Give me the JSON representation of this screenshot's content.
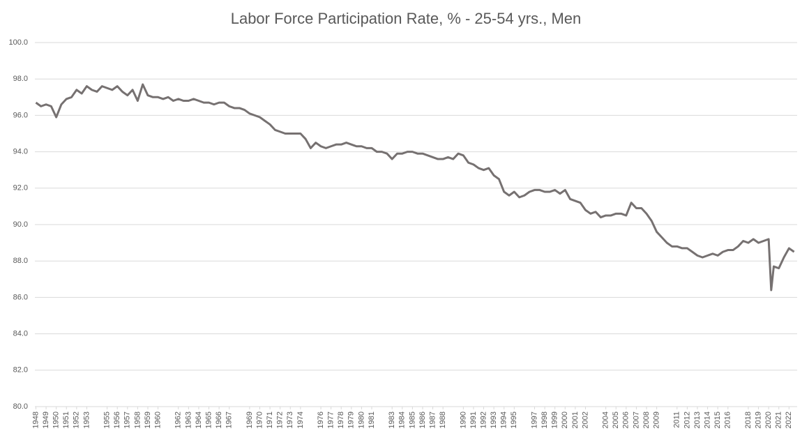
{
  "chart_data": {
    "type": "line",
    "title": "Labor Force Participation Rate, % - 25-54 yrs., Men",
    "x": [
      1948,
      1948.5,
      1949,
      1949.5,
      1950,
      1950.5,
      1951,
      1951.5,
      1952,
      1952.5,
      1953,
      1953.5,
      1954,
      1954.5,
      1955,
      1955.5,
      1956,
      1956.5,
      1957,
      1957.5,
      1958,
      1958.5,
      1959,
      1959.5,
      1960,
      1960.5,
      1961,
      1961.5,
      1962,
      1962.5,
      1963,
      1963.5,
      1964,
      1964.5,
      1965,
      1965.5,
      1966,
      1966.5,
      1967,
      1967.5,
      1968,
      1968.5,
      1969,
      1969.5,
      1970,
      1970.5,
      1971,
      1971.5,
      1972,
      1972.5,
      1973,
      1973.5,
      1974,
      1974.5,
      1975,
      1975.5,
      1976,
      1976.5,
      1977,
      1977.5,
      1978,
      1978.5,
      1979,
      1979.5,
      1980,
      1980.5,
      1981,
      1981.5,
      1982,
      1982.5,
      1983,
      1983.5,
      1984,
      1984.5,
      1985,
      1985.5,
      1986,
      1986.5,
      1987,
      1987.5,
      1988,
      1988.5,
      1989,
      1989.5,
      1990,
      1990.5,
      1991,
      1991.5,
      1992,
      1992.5,
      1993,
      1993.5,
      1994,
      1994.5,
      1995,
      1995.5,
      1996,
      1996.5,
      1997,
      1997.5,
      1998,
      1998.5,
      1999,
      1999.5,
      2000,
      2000.5,
      2001,
      2001.5,
      2002,
      2002.5,
      2003,
      2003.5,
      2004,
      2004.5,
      2005,
      2005.5,
      2006,
      2006.5,
      2007,
      2007.5,
      2008,
      2008.5,
      2009,
      2009.5,
      2010,
      2010.5,
      2011,
      2011.5,
      2012,
      2012.5,
      2013,
      2013.5,
      2014,
      2014.5,
      2015,
      2015.5,
      2016,
      2016.5,
      2017,
      2017.5,
      2018,
      2018.5,
      2019,
      2019.5,
      2020,
      2020.25,
      2020.5,
      2021,
      2021.5,
      2022,
      2022.5
    ],
    "series": [
      {
        "color": "#767171",
        "values": [
          96.7,
          96.5,
          96.6,
          96.5,
          95.9,
          96.6,
          96.9,
          97.0,
          97.4,
          97.2,
          97.6,
          97.4,
          97.3,
          97.6,
          97.5,
          97.4,
          97.6,
          97.3,
          97.1,
          97.4,
          96.8,
          97.7,
          97.1,
          97.0,
          97.0,
          96.9,
          97.0,
          96.8,
          96.9,
          96.8,
          96.8,
          96.9,
          96.8,
          96.7,
          96.7,
          96.6,
          96.7,
          96.7,
          96.5,
          96.4,
          96.4,
          96.3,
          96.1,
          96.0,
          95.9,
          95.7,
          95.5,
          95.2,
          95.1,
          95.0,
          95.0,
          95.0,
          95.0,
          94.7,
          94.2,
          94.5,
          94.3,
          94.2,
          94.3,
          94.4,
          94.4,
          94.5,
          94.4,
          94.3,
          94.3,
          94.2,
          94.2,
          94.0,
          94.0,
          93.9,
          93.6,
          93.9,
          93.9,
          94.0,
          94.0,
          93.9,
          93.9,
          93.8,
          93.7,
          93.6,
          93.6,
          93.7,
          93.6,
          93.9,
          93.8,
          93.4,
          93.3,
          93.1,
          93.0,
          93.1,
          92.7,
          92.5,
          91.8,
          91.6,
          91.8,
          91.5,
          91.6,
          91.8,
          91.9,
          91.9,
          91.8,
          91.8,
          91.9,
          91.7,
          91.9,
          91.4,
          91.3,
          91.2,
          90.8,
          90.6,
          90.7,
          90.4,
          90.5,
          90.5,
          90.6,
          90.6,
          90.5,
          91.2,
          90.9,
          90.9,
          90.6,
          90.2,
          89.6,
          89.3,
          89.0,
          88.8,
          88.8,
          88.7,
          88.7,
          88.5,
          88.3,
          88.2,
          88.3,
          88.4,
          88.3,
          88.5,
          88.6,
          88.6,
          88.8,
          89.1,
          89.0,
          89.2,
          89.0,
          89.1,
          89.2,
          86.4,
          87.7,
          87.6,
          88.2,
          88.7,
          88.5
        ]
      }
    ],
    "xlim": [
      1947.9,
      2022.8
    ],
    "xticks": [
      1948,
      1949,
      1950,
      1951,
      1952,
      1953,
      1955,
      1956,
      1957,
      1958,
      1959,
      1960,
      1962,
      1963,
      1964,
      1965,
      1966,
      1967,
      1969,
      1970,
      1971,
      1972,
      1973,
      1974,
      1976,
      1977,
      1978,
      1979,
      1980,
      1981,
      1983,
      1984,
      1985,
      1986,
      1987,
      1988,
      1990,
      1991,
      1992,
      1993,
      1994,
      1995,
      1997,
      1998,
      1999,
      2000,
      2001,
      2002,
      2004,
      2005,
      2006,
      2007,
      2008,
      2009,
      2011,
      2012,
      2013,
      2014,
      2015,
      2016,
      2018,
      2019,
      2020,
      2021,
      2022
    ],
    "ylim": [
      80,
      100
    ],
    "yticks": [
      {
        "value": 80,
        "label": "80.0"
      },
      {
        "value": 82,
        "label": "82.0"
      },
      {
        "value": 84,
        "label": "84.0"
      },
      {
        "value": 86,
        "label": "86.0"
      },
      {
        "value": 88,
        "label": "88.0"
      },
      {
        "value": 90,
        "label": "90.0"
      },
      {
        "value": 92,
        "label": "92.0"
      },
      {
        "value": 94,
        "label": "94.0"
      },
      {
        "value": 96,
        "label": "96.0"
      },
      {
        "value": 98,
        "label": "98.0"
      },
      {
        "value": 100,
        "label": "100.0"
      }
    ],
    "grid": true
  }
}
